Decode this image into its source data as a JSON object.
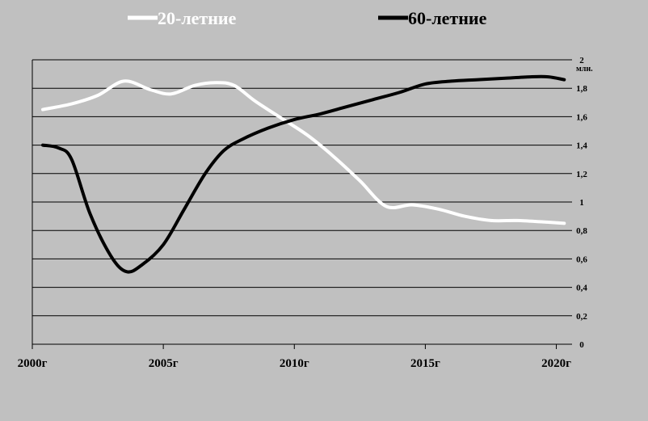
{
  "chart_data": {
    "type": "line",
    "ylim": [
      0,
      2
    ],
    "xlim": [
      2000,
      2020.6
    ],
    "y_ticks": [
      "0",
      "0,2",
      "0,4",
      "0,6",
      "0,8",
      "1",
      "1,2",
      "1,4",
      "1,6",
      "1,8",
      "2"
    ],
    "y_unit": "млн.",
    "x_ticks": [
      {
        "value": 2000,
        "label": "2000г"
      },
      {
        "value": 2005,
        "label": "2005г"
      },
      {
        "value": 2010,
        "label": "2010г"
      },
      {
        "value": 2015,
        "label": "2015г"
      },
      {
        "value": 2020,
        "label": "2020г"
      }
    ],
    "grid": true,
    "legend_position": "top",
    "series": [
      {
        "name": "20-летние",
        "color": "#ffffff",
        "points": [
          [
            2000.4,
            1.65
          ],
          [
            2001.5,
            1.69
          ],
          [
            2002.5,
            1.75
          ],
          [
            2003.5,
            1.85
          ],
          [
            2004.5,
            1.79
          ],
          [
            2005.3,
            1.76
          ],
          [
            2006.2,
            1.82
          ],
          [
            2007.0,
            1.84
          ],
          [
            2007.7,
            1.82
          ],
          [
            2008.5,
            1.71
          ],
          [
            2009.5,
            1.59
          ],
          [
            2010.5,
            1.47
          ],
          [
            2011.5,
            1.32
          ],
          [
            2012.5,
            1.15
          ],
          [
            2013.5,
            0.97
          ],
          [
            2014.5,
            0.98
          ],
          [
            2015.5,
            0.95
          ],
          [
            2016.5,
            0.9
          ],
          [
            2017.5,
            0.87
          ],
          [
            2018.5,
            0.87
          ],
          [
            2019.5,
            0.86
          ],
          [
            2020.3,
            0.85
          ]
        ]
      },
      {
        "name": "60-летние",
        "color": "#000000",
        "points": [
          [
            2000.4,
            1.4
          ],
          [
            2001.0,
            1.38
          ],
          [
            2001.5,
            1.3
          ],
          [
            2002.2,
            0.92
          ],
          [
            2003.0,
            0.62
          ],
          [
            2003.6,
            0.51
          ],
          [
            2004.2,
            0.56
          ],
          [
            2005.0,
            0.7
          ],
          [
            2005.8,
            0.95
          ],
          [
            2006.6,
            1.2
          ],
          [
            2007.3,
            1.36
          ],
          [
            2008.0,
            1.44
          ],
          [
            2009.0,
            1.52
          ],
          [
            2010.0,
            1.58
          ],
          [
            2011.0,
            1.62
          ],
          [
            2012.0,
            1.67
          ],
          [
            2013.0,
            1.72
          ],
          [
            2014.0,
            1.77
          ],
          [
            2015.0,
            1.83
          ],
          [
            2016.0,
            1.85
          ],
          [
            2017.0,
            1.86
          ],
          [
            2018.0,
            1.87
          ],
          [
            2019.0,
            1.88
          ],
          [
            2019.7,
            1.88
          ],
          [
            2020.3,
            1.86
          ]
        ]
      }
    ]
  }
}
